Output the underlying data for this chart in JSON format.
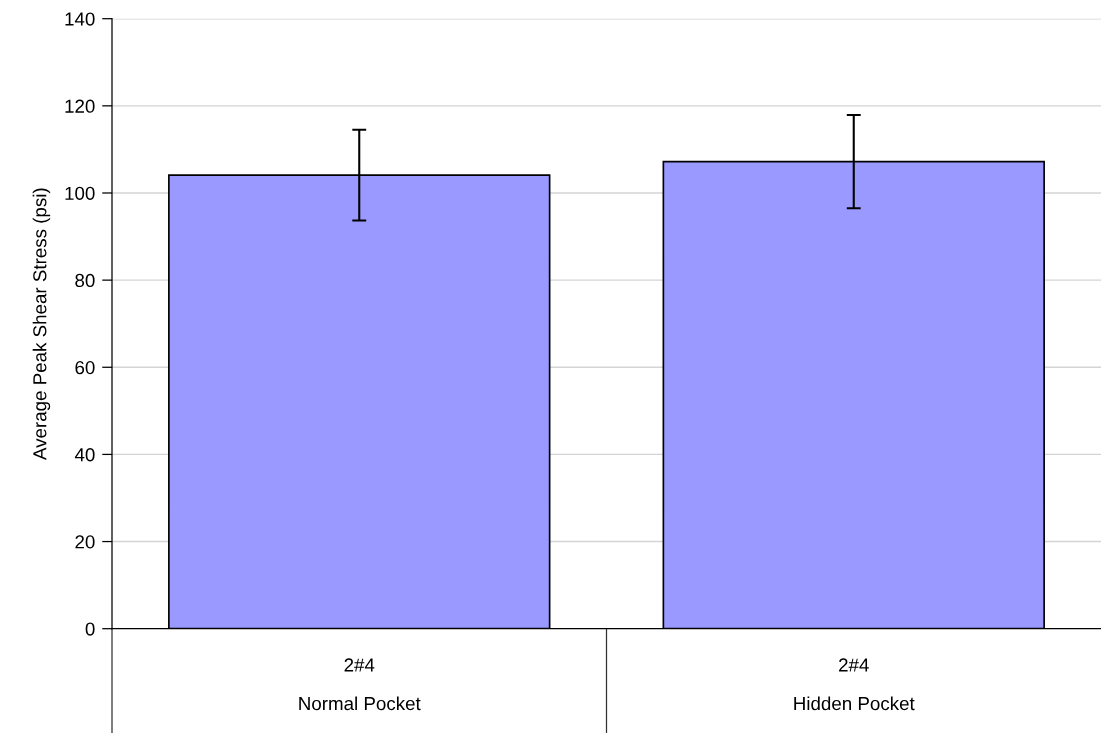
{
  "chart_data": {
    "type": "bar",
    "ylabel": "Average Peak Shear Stress (psi)",
    "categories": [
      "2#4\nNormal Pocket",
      "2#4\nHidden Pocket"
    ],
    "values": [
      104.1,
      107.2
    ],
    "errors": [
      10.4,
      10.7
    ],
    "color": "#9999ff",
    "ylim": [
      0,
      140
    ],
    "yticks": [
      0,
      20,
      40,
      60,
      80,
      100,
      120,
      140
    ],
    "grid": "y"
  }
}
